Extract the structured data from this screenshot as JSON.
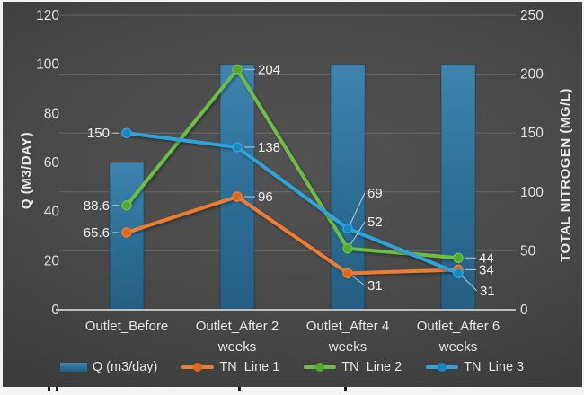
{
  "chart_data": {
    "type": "bar+line combo",
    "categories": [
      "Outlet_Before",
      "Outlet_After 2 weeks",
      "Outlet_After 4 weeks",
      "Outlet_After 6 weeks"
    ],
    "series": [
      {
        "name": "Q (m3/day)",
        "type": "bar",
        "axis": "left",
        "values": [
          60,
          100,
          100,
          100
        ]
      },
      {
        "name": "TN_Line 1",
        "type": "line",
        "axis": "right",
        "values": [
          65.6,
          96,
          31,
          34
        ]
      },
      {
        "name": "TN_Line 2",
        "type": "line",
        "axis": "right",
        "values": [
          88.6,
          204,
          52,
          44
        ]
      },
      {
        "name": "TN_Line 3",
        "type": "line",
        "axis": "right",
        "values": [
          150,
          138,
          69,
          31
        ]
      }
    ],
    "data_labels": {
      "TN_Line 1": [
        "65.6",
        "96",
        "31",
        "34"
      ],
      "TN_Line 2": [
        "88.6",
        "204",
        "52",
        "44"
      ],
      "TN_Line 3": [
        "150",
        "138",
        "69",
        "31"
      ]
    },
    "left_axis": {
      "label": "Q (M3/DAY)",
      "range": [
        0,
        120
      ],
      "ticks": [
        0,
        20,
        40,
        60,
        80,
        100,
        120
      ]
    },
    "right_axis": {
      "label": "TOTAL NITROGEN (MG/L)",
      "range": [
        0,
        250
      ],
      "ticks": [
        0,
        50,
        100,
        150,
        200,
        250
      ]
    },
    "grid": {
      "horizontal": true,
      "aligned_to": "right-axis"
    },
    "legend_position": "bottom",
    "legend": [
      {
        "label": "Q (m3/day)",
        "swatch": "bar"
      },
      {
        "label": "TN_Line 1",
        "swatch": "line"
      },
      {
        "label": "TN_Line 2",
        "swatch": "line"
      },
      {
        "label": "TN_Line 3",
        "swatch": "line"
      }
    ],
    "colors": {
      "bar": "#2E74A0",
      "TN_Line 1": "#ED7D31",
      "TN_Line 1_marker": "#DD6A1C",
      "TN_Line 2": "#6CBE45",
      "TN_Line 2_marker": "#54A72E",
      "TN_Line 3": "#2EA3DC",
      "TN_Line 3_marker": "#1B85C0",
      "tick_text": "#e0e0e0",
      "axis_title_text": "#eaeaea",
      "data_label_text": "#f0f0f0",
      "baseline": "#bdbdbd"
    }
  }
}
